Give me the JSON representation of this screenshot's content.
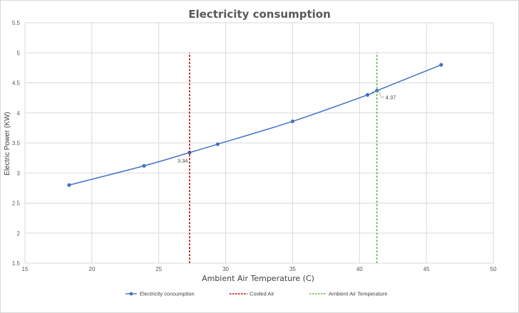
{
  "chart_data": {
    "type": "line",
    "title": "Electricity consumption",
    "xlabel": "Ambient Air Temperature (C)",
    "ylabel": "Electric Power (KW)",
    "xlim": [
      15,
      50
    ],
    "ylim": [
      1.5,
      5.5
    ],
    "x_ticks": [
      15,
      20,
      25,
      30,
      35,
      40,
      45,
      50
    ],
    "y_ticks": [
      1.5,
      2,
      2.5,
      3,
      3.5,
      4,
      4.5,
      5,
      5.5
    ],
    "grid": true,
    "legend_position": "bottom",
    "series": [
      {
        "name": "Electricity consumption",
        "style": "line-markers",
        "color": "#4472c4",
        "x": [
          18.3,
          23.9,
          27.3,
          29.4,
          35.0,
          40.6,
          41.3,
          46.1
        ],
        "y": [
          2.8,
          3.12,
          3.34,
          3.48,
          3.86,
          4.3,
          4.37,
          4.8
        ]
      },
      {
        "name": "Cooled Air",
        "style": "dashed",
        "color": "#c00000",
        "x": [
          27.3,
          27.3
        ],
        "y": [
          1.5,
          5.0
        ]
      },
      {
        "name": "Ambient Air Temperature",
        "style": "dashed",
        "color": "#70ad47",
        "x": [
          41.3,
          41.3
        ],
        "y": [
          1.5,
          5.0
        ]
      }
    ],
    "annotations": [
      {
        "text": "3.34",
        "x": 27.3,
        "y": 3.34
      },
      {
        "text": "4.37",
        "x": 41.3,
        "y": 4.37
      }
    ]
  }
}
